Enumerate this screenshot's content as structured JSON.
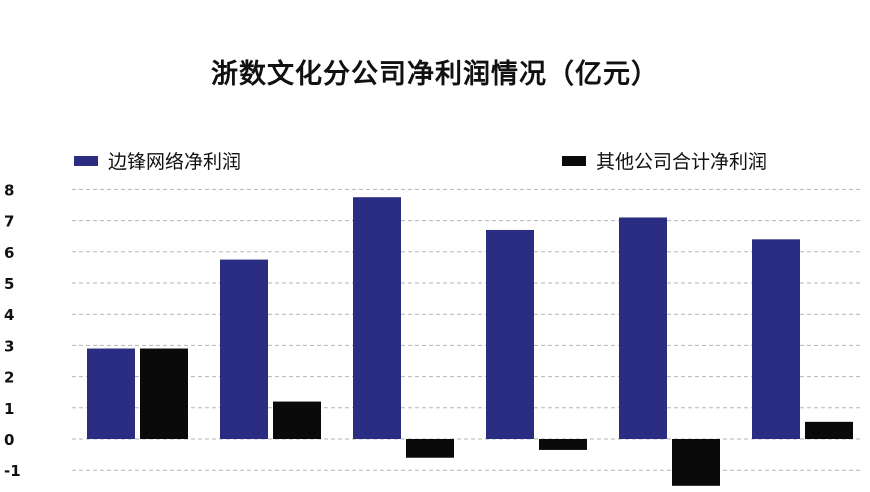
{
  "chart_data": {
    "type": "bar",
    "title": "浙数文化分公司净利润情况（亿元）",
    "categories": [
      "",
      "",
      "",
      "",
      "",
      ""
    ],
    "series": [
      {
        "name": "边锋网络净利润",
        "color": "#2b2d82",
        "values": [
          2.9,
          5.75,
          7.75,
          6.7,
          7.1,
          6.4
        ]
      },
      {
        "name": "其他公司合计净利润",
        "color": "#0a0a0a",
        "values": [
          2.9,
          1.2,
          -0.6,
          -0.35,
          -1.5,
          0.55
        ]
      }
    ],
    "yticks": [
      "8",
      "7",
      "6",
      "5",
      "4",
      "3",
      "2",
      "1",
      "0",
      "-1"
    ],
    "ylim": [
      -1.6,
      8
    ],
    "xlabel": "",
    "ylabel": "",
    "grid": true,
    "legend": "top"
  }
}
